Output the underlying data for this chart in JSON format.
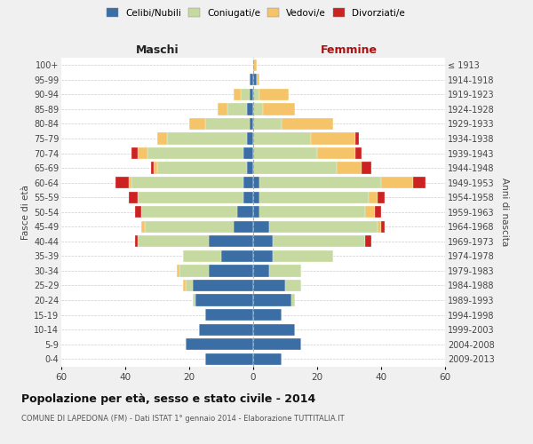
{
  "age_groups": [
    "0-4",
    "5-9",
    "10-14",
    "15-19",
    "20-24",
    "25-29",
    "30-34",
    "35-39",
    "40-44",
    "45-49",
    "50-54",
    "55-59",
    "60-64",
    "65-69",
    "70-74",
    "75-79",
    "80-84",
    "85-89",
    "90-94",
    "95-99",
    "100+"
  ],
  "birth_years": [
    "2009-2013",
    "2004-2008",
    "1999-2003",
    "1994-1998",
    "1989-1993",
    "1984-1988",
    "1979-1983",
    "1974-1978",
    "1969-1973",
    "1964-1968",
    "1959-1963",
    "1954-1958",
    "1949-1953",
    "1944-1948",
    "1939-1943",
    "1934-1938",
    "1929-1933",
    "1924-1928",
    "1919-1923",
    "1914-1918",
    "≤ 1913"
  ],
  "maschi": {
    "celibe": [
      15,
      21,
      17,
      15,
      18,
      19,
      14,
      10,
      14,
      6,
      5,
      3,
      3,
      2,
      3,
      2,
      1,
      2,
      1,
      1,
      0
    ],
    "coniugato": [
      0,
      0,
      0,
      0,
      1,
      2,
      9,
      12,
      22,
      28,
      30,
      33,
      35,
      28,
      30,
      25,
      14,
      6,
      3,
      0,
      0
    ],
    "vedovo": [
      0,
      0,
      0,
      0,
      0,
      1,
      1,
      0,
      0,
      1,
      0,
      0,
      1,
      1,
      3,
      3,
      5,
      3,
      2,
      0,
      0
    ],
    "divorziato": [
      0,
      0,
      0,
      0,
      0,
      0,
      0,
      0,
      1,
      0,
      2,
      3,
      4,
      1,
      2,
      0,
      0,
      0,
      0,
      0,
      0
    ]
  },
  "femmine": {
    "nubile": [
      9,
      15,
      13,
      9,
      12,
      10,
      5,
      6,
      6,
      5,
      2,
      2,
      2,
      0,
      0,
      0,
      0,
      0,
      0,
      1,
      0
    ],
    "coniugata": [
      0,
      0,
      0,
      0,
      1,
      5,
      10,
      19,
      29,
      34,
      33,
      34,
      38,
      26,
      20,
      18,
      9,
      3,
      2,
      0,
      0
    ],
    "vedova": [
      0,
      0,
      0,
      0,
      0,
      0,
      0,
      0,
      0,
      1,
      3,
      3,
      10,
      8,
      12,
      14,
      16,
      10,
      9,
      1,
      1
    ],
    "divorziata": [
      0,
      0,
      0,
      0,
      0,
      0,
      0,
      0,
      2,
      1,
      2,
      2,
      4,
      3,
      2,
      1,
      0,
      0,
      0,
      0,
      0
    ]
  },
  "colors": {
    "celibe": "#3A6EA5",
    "coniugato": "#C5D9A0",
    "vedovo": "#F5C469",
    "divorziato": "#CC2222"
  },
  "legend_labels": [
    "Celibi/Nubili",
    "Coniugati/e",
    "Vedovi/e",
    "Divorziati/e"
  ],
  "title": "Popolazione per età, sesso e stato civile - 2014",
  "subtitle": "COMUNE DI LAPEDONA (FM) - Dati ISTAT 1° gennaio 2014 - Elaborazione TUTTITALIA.IT",
  "ylabel_left": "Fasce di età",
  "ylabel_right": "Anni di nascita",
  "xlabel_left": "Maschi",
  "xlabel_right": "Femmine",
  "xlim": 60,
  "bg_color": "#F0F0F0",
  "plot_bg_color": "#FFFFFF"
}
